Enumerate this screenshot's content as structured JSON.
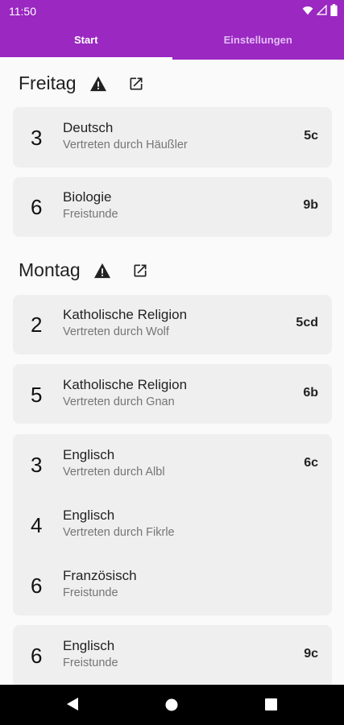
{
  "status": {
    "time": "11:50"
  },
  "tabs": [
    {
      "label": "Start"
    },
    {
      "label": "Einstellungen"
    }
  ],
  "colors": {
    "accent": "#9a28c1",
    "card": "#efefef"
  },
  "sections": [
    {
      "day": "Freitag",
      "cards": [
        {
          "rows": [
            {
              "period": "3",
              "subject": "Deutsch",
              "detail": "Vertreten durch Häußler",
              "class": "5c"
            }
          ]
        },
        {
          "rows": [
            {
              "period": "6",
              "subject": "Biologie",
              "detail": "Freistunde",
              "class": "9b"
            }
          ]
        }
      ]
    },
    {
      "day": "Montag",
      "cards": [
        {
          "rows": [
            {
              "period": "2",
              "subject": "Katholische Religion",
              "detail": "Vertreten durch Wolf",
              "class": "5cd"
            }
          ]
        },
        {
          "rows": [
            {
              "period": "5",
              "subject": "Katholische Religion",
              "detail": "Vertreten durch Gnan",
              "class": "6b"
            }
          ]
        },
        {
          "rows": [
            {
              "period": "3",
              "subject": "Englisch",
              "detail": "Vertreten durch Albl",
              "class": "6c"
            },
            {
              "period": "4",
              "subject": "Englisch",
              "detail": "Vertreten durch Fikrle",
              "class": ""
            },
            {
              "period": "6",
              "subject": "Französisch",
              "detail": "Freistunde",
              "class": ""
            }
          ]
        },
        {
          "rows": [
            {
              "period": "6",
              "subject": "Englisch",
              "detail": "Freistunde",
              "class": "9c"
            }
          ]
        }
      ]
    }
  ],
  "icons": {
    "warning": "warning-icon",
    "external": "open-external-icon",
    "wifi": "wifi-icon",
    "signal": "signal-icon",
    "battery": "battery-icon",
    "back": "nav-back-icon",
    "home": "nav-home-icon",
    "recents": "nav-recents-icon"
  }
}
